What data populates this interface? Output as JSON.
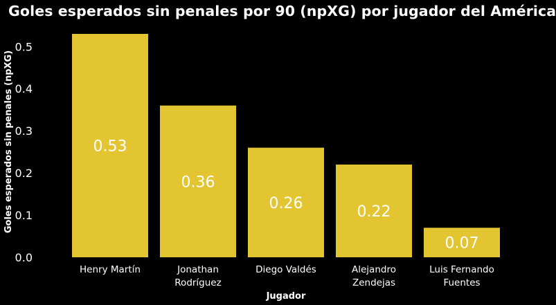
{
  "chart_data": {
    "type": "bar",
    "title": "Goles esperados sin penales por 90 (npXG) por jugador del América",
    "xlabel": "Jugador",
    "ylabel": "Goles esperados sin penales (npXG)",
    "categories": [
      [
        "Henry Martín"
      ],
      [
        "Jonathan",
        "Rodríguez"
      ],
      [
        "Diego Valdés"
      ],
      [
        "Alejandro",
        "Zendejas"
      ],
      [
        "Luis Fernando",
        "Fuentes"
      ]
    ],
    "values": [
      0.53,
      0.36,
      0.26,
      0.22,
      0.07
    ],
    "data_labels": [
      "0.53",
      "0.36",
      "0.26",
      "0.22",
      "0.07"
    ],
    "yticks": [
      0.0,
      0.1,
      0.2,
      0.3,
      0.4,
      0.5
    ],
    "ytick_labels": [
      "0.0",
      "0.1",
      "0.2",
      "0.3",
      "0.4",
      "0.5"
    ],
    "ylim": [
      0,
      0.53
    ],
    "grid": false,
    "legend": "none",
    "colors": {
      "bar": "#E3C532",
      "background": "#000000",
      "text": "#FFFFFF"
    }
  }
}
